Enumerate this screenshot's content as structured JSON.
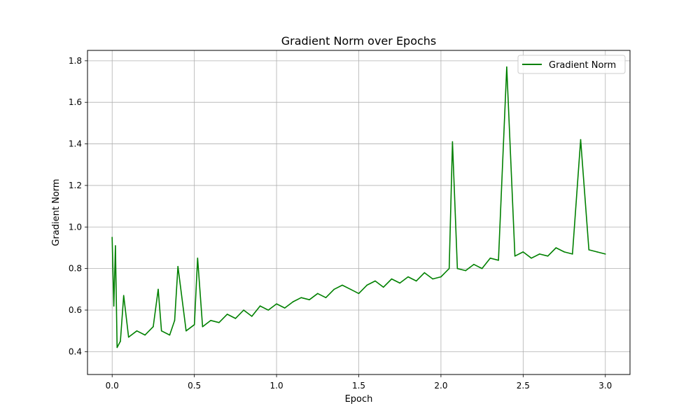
{
  "chart_data": {
    "type": "line",
    "title": "Gradient Norm over Epochs",
    "xlabel": "Epoch",
    "ylabel": "Gradient Norm",
    "xlim": [
      -0.15,
      3.15
    ],
    "ylim": [
      0.29,
      1.85
    ],
    "xticks": [
      0.0,
      0.5,
      1.0,
      1.5,
      2.0,
      2.5,
      3.0
    ],
    "xtick_labels": [
      "0.0",
      "0.5",
      "1.0",
      "1.5",
      "2.0",
      "2.5",
      "3.0"
    ],
    "yticks": [
      0.4,
      0.6,
      0.8,
      1.0,
      1.2,
      1.4,
      1.6,
      1.8
    ],
    "ytick_labels": [
      "0.4",
      "0.6",
      "0.8",
      "1.0",
      "1.2",
      "1.4",
      "1.6",
      "1.8"
    ],
    "grid": true,
    "legend_position": "top-right",
    "series": [
      {
        "name": "Gradient Norm",
        "color": "#008000",
        "x": [
          0.0,
          0.01,
          0.02,
          0.03,
          0.05,
          0.07,
          0.1,
          0.15,
          0.2,
          0.25,
          0.28,
          0.3,
          0.35,
          0.38,
          0.4,
          0.45,
          0.5,
          0.52,
          0.55,
          0.6,
          0.65,
          0.7,
          0.75,
          0.8,
          0.85,
          0.9,
          0.95,
          1.0,
          1.05,
          1.1,
          1.15,
          1.2,
          1.25,
          1.3,
          1.35,
          1.4,
          1.45,
          1.5,
          1.55,
          1.6,
          1.65,
          1.7,
          1.75,
          1.8,
          1.85,
          1.9,
          1.95,
          2.0,
          2.05,
          2.07,
          2.1,
          2.15,
          2.2,
          2.25,
          2.3,
          2.35,
          2.4,
          2.45,
          2.5,
          2.55,
          2.6,
          2.65,
          2.7,
          2.75,
          2.8,
          2.85,
          2.9,
          2.95,
          3.0
        ],
        "y": [
          0.95,
          0.62,
          0.91,
          0.42,
          0.45,
          0.67,
          0.47,
          0.5,
          0.48,
          0.52,
          0.7,
          0.5,
          0.48,
          0.55,
          0.81,
          0.5,
          0.53,
          0.85,
          0.52,
          0.55,
          0.54,
          0.58,
          0.56,
          0.6,
          0.57,
          0.62,
          0.6,
          0.63,
          0.61,
          0.64,
          0.66,
          0.65,
          0.68,
          0.66,
          0.7,
          0.72,
          0.7,
          0.68,
          0.72,
          0.74,
          0.71,
          0.75,
          0.73,
          0.76,
          0.74,
          0.78,
          0.75,
          0.76,
          0.8,
          1.41,
          0.8,
          0.79,
          0.82,
          0.8,
          0.85,
          0.84,
          1.77,
          0.86,
          0.88,
          0.85,
          0.87,
          0.86,
          0.9,
          0.88,
          0.87,
          1.42,
          0.89,
          0.88,
          0.87
        ]
      }
    ]
  }
}
